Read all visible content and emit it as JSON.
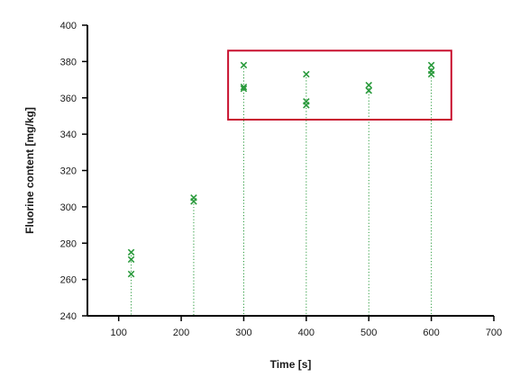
{
  "colors": {
    "marker": "#2a9a3c",
    "dropline": "#2a9a3c",
    "axis": "#000000",
    "highlight_box": "#c8102e"
  },
  "chart_data": {
    "type": "scatter",
    "title": "",
    "xlabel": "Time [s]",
    "ylabel": "Fluorine content [mg/kg]",
    "xlim": [
      50,
      700
    ],
    "ylim": [
      240,
      400
    ],
    "x_ticks": [
      100,
      200,
      300,
      400,
      500,
      600,
      700
    ],
    "y_ticks": [
      240,
      260,
      280,
      300,
      320,
      340,
      360,
      380,
      400
    ],
    "grid": false,
    "marker": "x",
    "drop_lines": true,
    "series": [
      {
        "points": [
          {
            "x": 120,
            "y": 275
          },
          {
            "x": 120,
            "y": 271
          },
          {
            "x": 120,
            "y": 263
          },
          {
            "x": 220,
            "y": 305
          },
          {
            "x": 220,
            "y": 303
          },
          {
            "x": 300,
            "y": 378
          },
          {
            "x": 300,
            "y": 366
          },
          {
            "x": 300,
            "y": 365
          },
          {
            "x": 400,
            "y": 373
          },
          {
            "x": 400,
            "y": 358
          },
          {
            "x": 400,
            "y": 356
          },
          {
            "x": 500,
            "y": 367
          },
          {
            "x": 500,
            "y": 364
          },
          {
            "x": 600,
            "y": 378
          },
          {
            "x": 600,
            "y": 375
          },
          {
            "x": 600,
            "y": 373
          }
        ]
      }
    ],
    "highlight_region": {
      "x": [
        275,
        632
      ],
      "y": [
        348,
        386
      ]
    }
  }
}
